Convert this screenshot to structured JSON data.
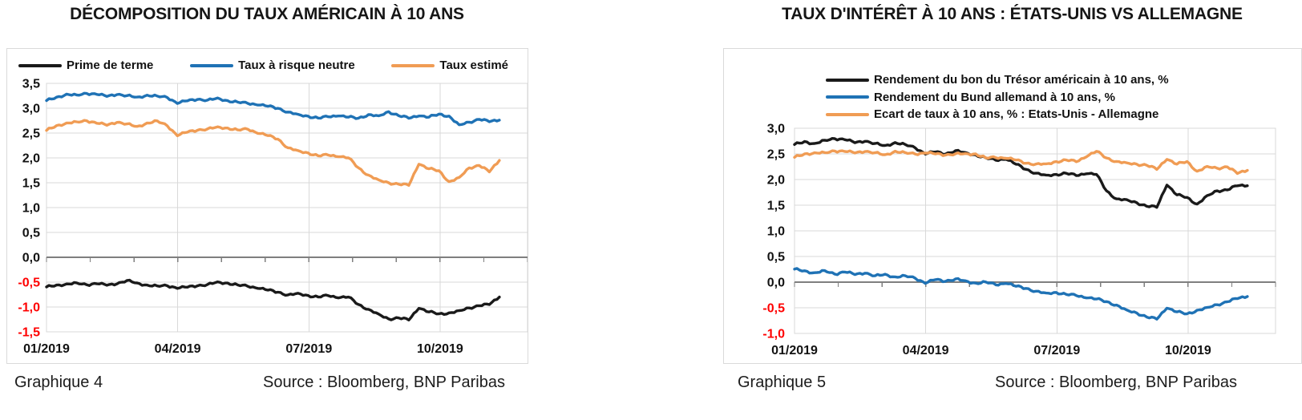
{
  "styles": {
    "background": "#FFFFFF",
    "grid_color": "#D9D9D9",
    "axis_color": "#7F7F7F",
    "tick_label_color": "#121212",
    "negative_tick_color": "#FF0000",
    "title_color": "#161616",
    "caption_color": "#1C1C1C",
    "black_series": "#1A1A1A",
    "blue_series": "#1F72B5",
    "orange_series": "#F09C54"
  },
  "chart_data": [
    {
      "type": "line",
      "title": "DÉCOMPOSITION DU TAUX AMÉRICAIN À 10 ANS",
      "caption": "Graphique 4",
      "source": "Source : Bloomberg, BNP Paribas",
      "x_tick_labels": [
        "01/2019",
        "04/2019",
        "07/2019",
        "10/2019"
      ],
      "x_tick_months": [
        0,
        3,
        6,
        9
      ],
      "x_domain_months": [
        0,
        11
      ],
      "x_sampling": "weekly",
      "ylim": [
        -1.5,
        3.5
      ],
      "ytick_step": 0.5,
      "grid": true,
      "legend_position": "top-row",
      "series": [
        {
          "name": "Prime de terme",
          "color": "#1A1A1A",
          "values": [
            -0.6,
            -0.56,
            -0.54,
            -0.52,
            -0.55,
            -0.53,
            -0.56,
            -0.53,
            -0.47,
            -0.52,
            -0.56,
            -0.58,
            -0.57,
            -0.62,
            -0.6,
            -0.57,
            -0.55,
            -0.5,
            -0.52,
            -0.56,
            -0.58,
            -0.62,
            -0.66,
            -0.7,
            -0.76,
            -0.73,
            -0.77,
            -0.8,
            -0.77,
            -0.81,
            -0.8,
            -0.95,
            -1.05,
            -1.15,
            -1.24,
            -1.22,
            -1.26,
            -1.02,
            -1.1,
            -1.14,
            -1.12,
            -1.08,
            -1.02,
            -0.97,
            -0.95,
            -0.8
          ]
        },
        {
          "name": "Taux à risque neutre",
          "color": "#1F72B5",
          "values": [
            3.15,
            3.22,
            3.28,
            3.26,
            3.3,
            3.28,
            3.24,
            3.28,
            3.25,
            3.22,
            3.26,
            3.24,
            3.22,
            3.1,
            3.15,
            3.18,
            3.16,
            3.2,
            3.15,
            3.12,
            3.1,
            3.07,
            3.04,
            3.0,
            2.92,
            2.87,
            2.84,
            2.8,
            2.83,
            2.85,
            2.82,
            2.8,
            2.87,
            2.84,
            2.93,
            2.85,
            2.8,
            2.85,
            2.82,
            2.88,
            2.84,
            2.66,
            2.72,
            2.78,
            2.73,
            2.76
          ]
        },
        {
          "name": "Taux estimé",
          "color": "#F09C54",
          "values": [
            2.55,
            2.65,
            2.7,
            2.72,
            2.75,
            2.7,
            2.66,
            2.72,
            2.68,
            2.63,
            2.7,
            2.74,
            2.65,
            2.45,
            2.52,
            2.56,
            2.58,
            2.62,
            2.6,
            2.56,
            2.58,
            2.5,
            2.45,
            2.38,
            2.2,
            2.14,
            2.1,
            2.04,
            2.06,
            2.03,
            2.0,
            1.8,
            1.65,
            1.55,
            1.5,
            1.47,
            1.45,
            1.88,
            1.78,
            1.74,
            1.52,
            1.6,
            1.8,
            1.85,
            1.72,
            1.95
          ]
        }
      ]
    },
    {
      "type": "line",
      "title": "TAUX D'INTÉRÊT À 10 ANS : ÉTATS-UNIS VS ALLEMAGNE",
      "caption": "Graphique 5",
      "source": "Source : Bloomberg, BNP Paribas",
      "x_tick_labels": [
        "01/2019",
        "04/2019",
        "07/2019",
        "10/2019"
      ],
      "x_tick_months": [
        0,
        3,
        6,
        9
      ],
      "x_domain_months": [
        0,
        11
      ],
      "x_sampling": "weekly",
      "ylim": [
        -1.0,
        3.0
      ],
      "ytick_step": 0.5,
      "grid": true,
      "legend_position": "top-column",
      "series": [
        {
          "name": "Rendement du bon du Trésor américain à 10 ans, %",
          "color": "#1A1A1A",
          "values": [
            2.68,
            2.74,
            2.7,
            2.76,
            2.8,
            2.78,
            2.72,
            2.75,
            2.7,
            2.66,
            2.72,
            2.68,
            2.62,
            2.5,
            2.54,
            2.5,
            2.56,
            2.52,
            2.48,
            2.42,
            2.38,
            2.4,
            2.3,
            2.2,
            2.12,
            2.08,
            2.1,
            2.12,
            2.08,
            2.12,
            2.1,
            1.78,
            1.62,
            1.6,
            1.55,
            1.48,
            1.46,
            1.9,
            1.7,
            1.65,
            1.52,
            1.68,
            1.78,
            1.8,
            1.88,
            1.88
          ]
        },
        {
          "name": "Rendement du Bund allemand à 10 ans, %",
          "color": "#1F72B5",
          "values": [
            0.25,
            0.22,
            0.18,
            0.22,
            0.16,
            0.2,
            0.15,
            0.18,
            0.12,
            0.15,
            0.1,
            0.12,
            0.08,
            -0.02,
            0.05,
            0.02,
            0.06,
            0.02,
            -0.02,
            0.0,
            -0.05,
            -0.02,
            -0.08,
            -0.12,
            -0.18,
            -0.22,
            -0.2,
            -0.24,
            -0.26,
            -0.3,
            -0.33,
            -0.38,
            -0.45,
            -0.55,
            -0.6,
            -0.68,
            -0.72,
            -0.5,
            -0.58,
            -0.62,
            -0.55,
            -0.5,
            -0.44,
            -0.38,
            -0.32,
            -0.28
          ]
        },
        {
          "name": "Ecart de taux à 10 ans, % : Etats-Unis - Allemagne",
          "color": "#F09C54",
          "values": [
            2.43,
            2.5,
            2.52,
            2.52,
            2.56,
            2.55,
            2.52,
            2.55,
            2.52,
            2.48,
            2.55,
            2.52,
            2.5,
            2.52,
            2.5,
            2.48,
            2.5,
            2.5,
            2.5,
            2.42,
            2.43,
            2.42,
            2.38,
            2.32,
            2.3,
            2.3,
            2.35,
            2.38,
            2.35,
            2.45,
            2.55,
            2.42,
            2.35,
            2.32,
            2.3,
            2.28,
            2.2,
            2.4,
            2.3,
            2.35,
            2.16,
            2.25,
            2.22,
            2.25,
            2.12,
            2.18
          ]
        }
      ]
    }
  ]
}
